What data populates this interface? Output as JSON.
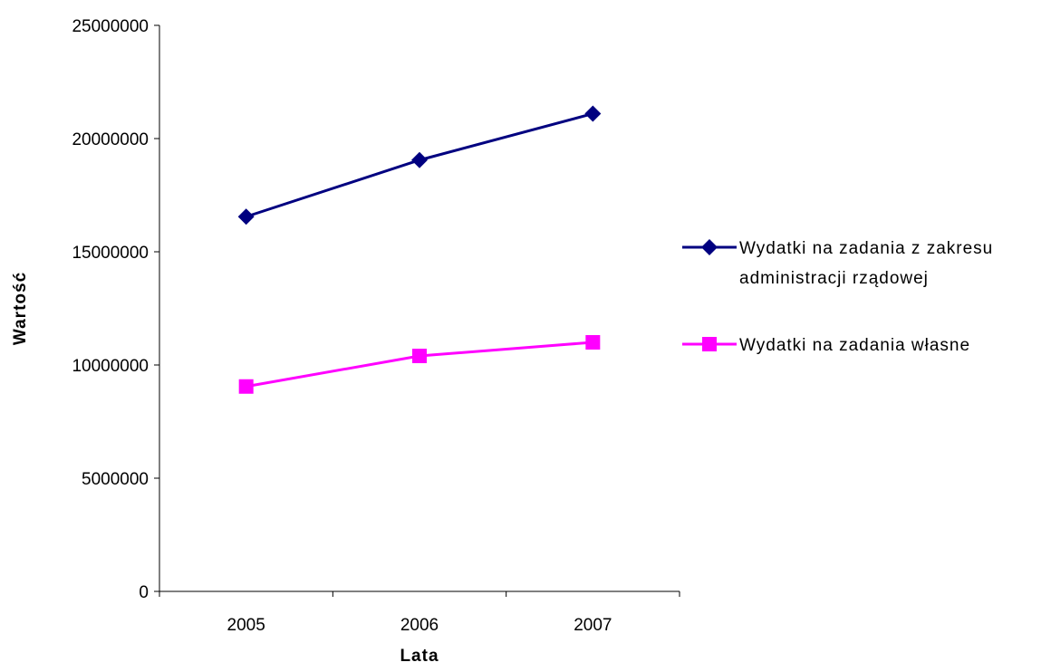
{
  "chart_data": {
    "type": "line",
    "title": "",
    "xlabel": "Lata",
    "ylabel": "Wartość",
    "categories": [
      "2005",
      "2006",
      "2007"
    ],
    "ylim": [
      0,
      25000000
    ],
    "yticks": [
      "0",
      "5000000",
      "10000000",
      "15000000",
      "20000000",
      "25000000"
    ],
    "grid": false,
    "legend_position": "right",
    "series": [
      {
        "name_lines": [
          "Wydatki na zadania z zakresu",
          "administracji rządowej"
        ],
        "values": [
          16550000,
          19050000,
          21100000
        ],
        "color": "#000080",
        "marker": "diamond"
      },
      {
        "name_lines": [
          "Wydatki na zadania własne"
        ],
        "values": [
          9050000,
          10400000,
          11000000
        ],
        "color": "#FF00FF",
        "marker": "square"
      }
    ]
  }
}
